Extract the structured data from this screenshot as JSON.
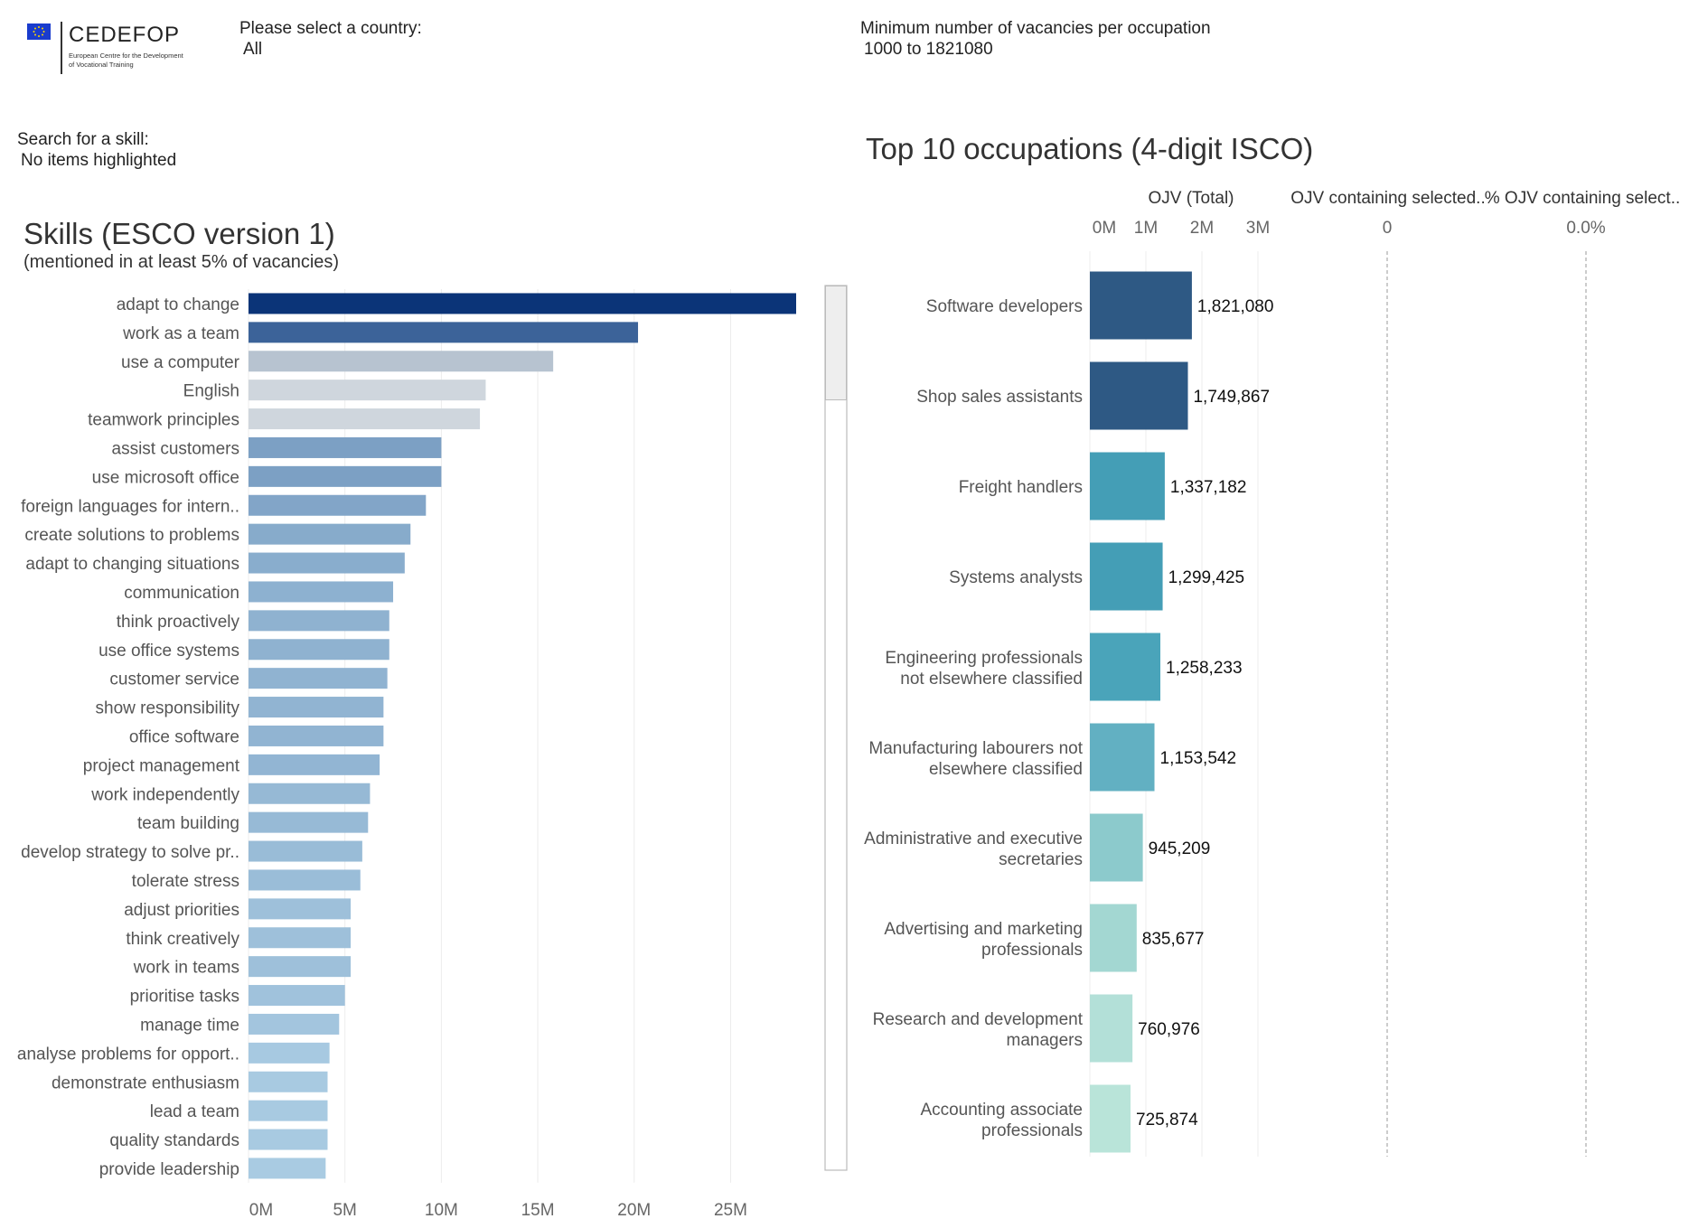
{
  "logo": {
    "name": "CEDEFOP",
    "tagline_line1": "European Centre for the Development",
    "tagline_line2": "of Vocational Training",
    "flag_color": "#1a3ccd"
  },
  "filters": {
    "country_label": "Please select a country:",
    "country_value": "All",
    "vacancies_label": "Minimum number of vacancies per occupation",
    "vacancies_value": "1000 to 1821080",
    "skill_label": "Search for a skill:",
    "skill_value": "No items highlighted"
  },
  "chart_data": [
    {
      "type": "bar",
      "orientation": "horizontal",
      "title": "Skills (ESCO version 1)",
      "subtitle": "(mentioned in at least 5% of vacancies)",
      "categories": [
        "adapt to change",
        "work as a team",
        "use a computer",
        "English",
        "teamwork principles",
        "assist customers",
        "use microsoft office",
        "foreign languages for intern..",
        "create solutions to problems",
        "adapt to changing situations",
        "communication",
        "think proactively",
        "use office systems",
        "customer service",
        "show responsibility",
        "office software",
        "project management",
        "work independently",
        "team building",
        "develop strategy to solve pr..",
        "tolerate stress",
        "adjust priorities",
        "think creatively",
        "work in teams",
        "prioritise tasks",
        "manage time",
        "analyse problems for opport..",
        "demonstrate enthusiasm",
        "lead a team",
        "quality standards",
        "provide leadership"
      ],
      "values": [
        28.4,
        20.2,
        15.8,
        12.3,
        12.0,
        10.0,
        10.0,
        9.2,
        8.4,
        8.1,
        7.5,
        7.3,
        7.3,
        7.2,
        7.0,
        7.0,
        6.8,
        6.3,
        6.2,
        5.9,
        5.8,
        5.3,
        5.3,
        5.3,
        5.0,
        4.7,
        4.2,
        4.1,
        4.1,
        4.1,
        4.0
      ],
      "value_unit": "M",
      "xticks": [
        "0M",
        "5M",
        "10M",
        "15M",
        "20M",
        "25M"
      ],
      "xlim": [
        0,
        28.4
      ],
      "grid": true,
      "color_max": "#0b3478",
      "color_min": "#a9cbe2"
    },
    {
      "type": "bar",
      "orientation": "horizontal",
      "title": "Top 10 occupations (4-digit ISCO)",
      "column_headers": [
        "OJV (Total)",
        "OJV containing selected..",
        "% OJV containing select.."
      ],
      "categories": [
        [
          "Software developers"
        ],
        [
          "Shop sales assistants"
        ],
        [
          "Freight handlers"
        ],
        [
          "Systems analysts"
        ],
        [
          "Engineering professionals",
          "not elsewhere classified"
        ],
        [
          "Manufacturing labourers not",
          "elsewhere classified"
        ],
        [
          "Administrative and executive",
          "secretaries"
        ],
        [
          "Advertising and marketing",
          "professionals"
        ],
        [
          "Research and development",
          "managers"
        ],
        [
          "Accounting associate",
          "professionals"
        ]
      ],
      "values": [
        1821080,
        1749867,
        1337182,
        1299425,
        1258233,
        1153542,
        945209,
        835677,
        760976,
        725874
      ],
      "labels": [
        "1,821,080",
        "1,749,867",
        "1,337,182",
        "1,299,425",
        "1,258,233",
        "1,153,542",
        "945,209",
        "835,677",
        "760,976",
        "725,874"
      ],
      "xticks": [
        "0M",
        "1M",
        "2M",
        "3M"
      ],
      "xlim": [
        0,
        3
      ],
      "colors": [
        "#2e5984",
        "#2e5984",
        "#449eb6",
        "#449eb6",
        "#4aa4ba",
        "#62b0c2",
        "#8ccacc",
        "#a3d7d2",
        "#b3e0d8",
        "#b9e4d9"
      ],
      "col2_tick": "0",
      "col3_tick": "0.0%"
    }
  ]
}
